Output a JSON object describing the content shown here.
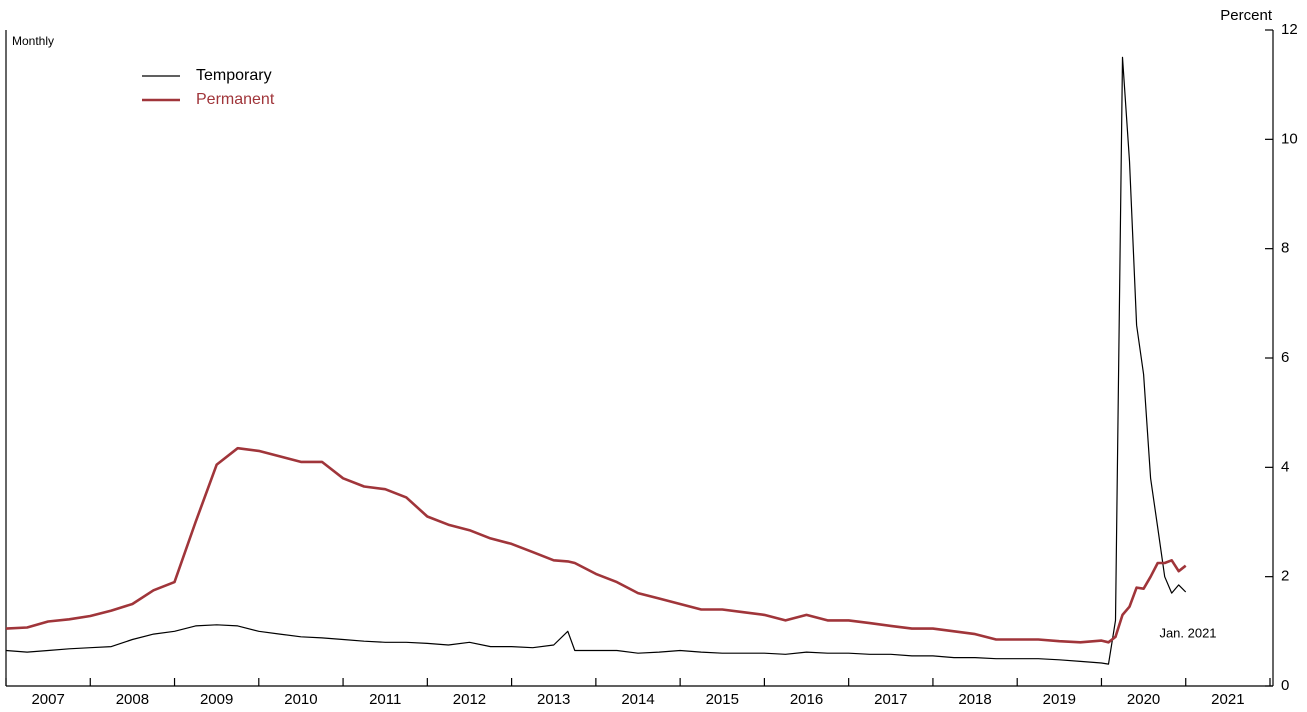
{
  "chart_data": {
    "type": "line",
    "y_axis_label": "Percent",
    "subtitle": "Monthly",
    "annotation": "Jan. 2021",
    "xlim": [
      2007,
      2022
    ],
    "xticks": [
      {
        "value": 2007.5,
        "label": "2007"
      },
      {
        "value": 2008.5,
        "label": "2008"
      },
      {
        "value": 2009.5,
        "label": "2009"
      },
      {
        "value": 2010.5,
        "label": "2010"
      },
      {
        "value": 2011.5,
        "label": "2011"
      },
      {
        "value": 2012.5,
        "label": "2012"
      },
      {
        "value": 2013.5,
        "label": "2013"
      },
      {
        "value": 2014.5,
        "label": "2014"
      },
      {
        "value": 2015.5,
        "label": "2015"
      },
      {
        "value": 2016.5,
        "label": "2016"
      },
      {
        "value": 2017.5,
        "label": "2017"
      },
      {
        "value": 2018.5,
        "label": "2018"
      },
      {
        "value": 2019.5,
        "label": "2019"
      },
      {
        "value": 2020.5,
        "label": "2020"
      },
      {
        "value": 2021.5,
        "label": "2021"
      }
    ],
    "ylim": [
      0,
      12
    ],
    "yticks": [
      0,
      2,
      4,
      6,
      8,
      10,
      12
    ],
    "x": [
      2007,
      2007.25,
      2007.5,
      2007.75,
      2008,
      2008.25,
      2008.5,
      2008.75,
      2009,
      2009.25,
      2009.5,
      2009.75,
      2010,
      2010.25,
      2010.5,
      2010.75,
      2011,
      2011.25,
      2011.5,
      2011.75,
      2012,
      2012.25,
      2012.5,
      2012.75,
      2013,
      2013.25,
      2013.5,
      2013.667,
      2013.75,
      2014,
      2014.25,
      2014.5,
      2014.75,
      2015,
      2015.25,
      2015.5,
      2015.75,
      2016,
      2016.25,
      2016.5,
      2016.75,
      2017,
      2017.25,
      2017.5,
      2017.75,
      2018,
      2018.25,
      2018.5,
      2018.75,
      2019,
      2019.25,
      2019.5,
      2019.75,
      2020,
      2020.083,
      2020.167,
      2020.25,
      2020.333,
      2020.417,
      2020.5,
      2020.583,
      2020.667,
      2020.75,
      2020.833,
      2020.917,
      2021
    ],
    "series": [
      {
        "name": "Temporary",
        "color": "#000000",
        "width": 1.2,
        "values": [
          0.65,
          0.62,
          0.65,
          0.68,
          0.7,
          0.72,
          0.85,
          0.95,
          1.0,
          1.1,
          1.12,
          1.1,
          1.0,
          0.95,
          0.9,
          0.88,
          0.85,
          0.82,
          0.8,
          0.8,
          0.78,
          0.75,
          0.8,
          0.72,
          0.72,
          0.7,
          0.75,
          1.0,
          0.65,
          0.65,
          0.65,
          0.6,
          0.62,
          0.65,
          0.62,
          0.6,
          0.6,
          0.6,
          0.58,
          0.62,
          0.6,
          0.6,
          0.58,
          0.58,
          0.55,
          0.55,
          0.52,
          0.52,
          0.5,
          0.5,
          0.5,
          0.48,
          0.45,
          0.42,
          0.4,
          1.2,
          11.5,
          9.6,
          6.6,
          5.7,
          3.8,
          2.9,
          2.0,
          1.7,
          1.85,
          1.72
        ]
      },
      {
        "name": "Permanent",
        "color": "#a0353a",
        "width": 2.6,
        "values": [
          1.05,
          1.07,
          1.18,
          1.22,
          1.28,
          1.38,
          1.5,
          1.75,
          1.9,
          3.0,
          4.05,
          4.35,
          4.3,
          4.2,
          4.1,
          4.1,
          3.8,
          3.65,
          3.6,
          3.45,
          3.1,
          2.95,
          2.85,
          2.7,
          2.6,
          2.45,
          2.3,
          2.28,
          2.25,
          2.05,
          1.9,
          1.7,
          1.6,
          1.5,
          1.4,
          1.4,
          1.35,
          1.3,
          1.2,
          1.3,
          1.2,
          1.2,
          1.15,
          1.1,
          1.05,
          1.05,
          1.0,
          0.95,
          0.85,
          0.85,
          0.85,
          0.82,
          0.8,
          0.83,
          0.8,
          0.9,
          1.3,
          1.45,
          1.8,
          1.78,
          2.0,
          2.25,
          2.25,
          2.3,
          2.1,
          2.2
        ]
      }
    ]
  }
}
